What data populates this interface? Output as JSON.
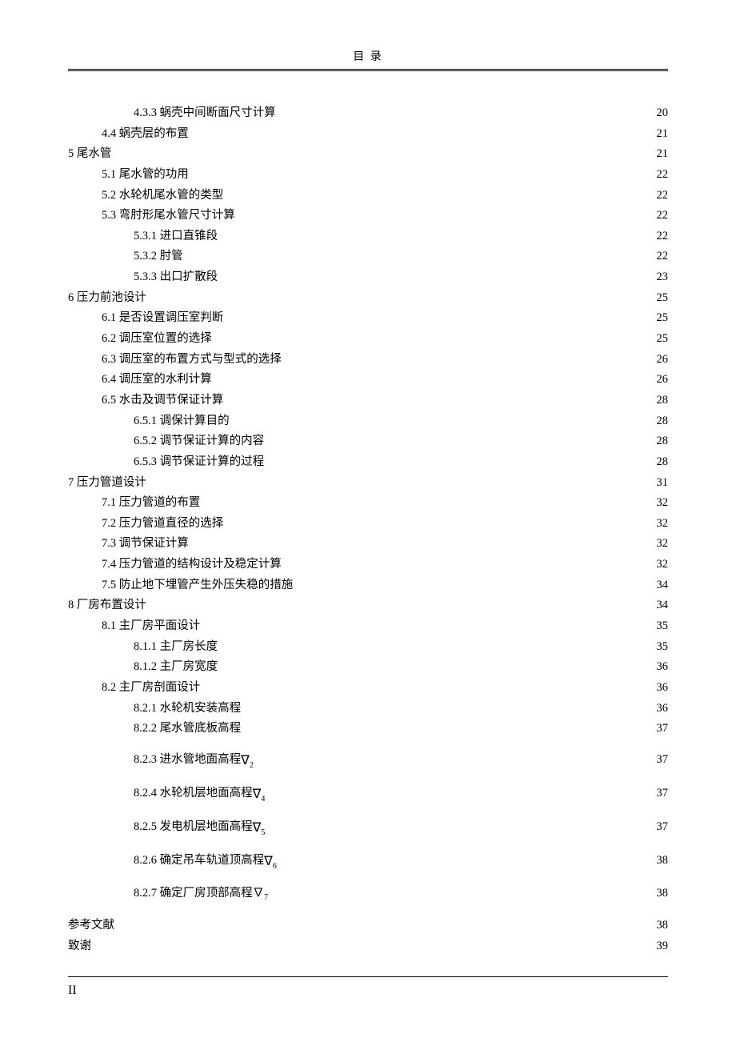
{
  "header": {
    "title": "目 录"
  },
  "footer": {
    "page_number": "II"
  },
  "toc": {
    "entries": [
      {
        "indent": 2,
        "label": "4.3.3 蜗壳中间断面尺寸计算",
        "page": "20"
      },
      {
        "indent": 1,
        "label": "4.4 蜗壳层的布置",
        "page": "21"
      },
      {
        "indent": 0,
        "label": "5 尾水管",
        "page": "21"
      },
      {
        "indent": 1,
        "label": "5.1 尾水管的功用",
        "page": "22"
      },
      {
        "indent": 1,
        "label": "5.2 水轮机尾水管的类型",
        "page": "22"
      },
      {
        "indent": 1,
        "label": "5.3 弯肘形尾水管尺寸计算",
        "page": "22"
      },
      {
        "indent": 2,
        "label": "5.3.1 进口直锥段",
        "page": "22"
      },
      {
        "indent": 2,
        "label": "5.3.2 肘管",
        "page": "22"
      },
      {
        "indent": 2,
        "label": "5.3.3 出口扩散段",
        "page": "23"
      },
      {
        "indent": 0,
        "label": "6 压力前池设计",
        "page": "25"
      },
      {
        "indent": 1,
        "label": "6.1 是否设置调压室判断",
        "page": "25"
      },
      {
        "indent": 1,
        "label": "6.2 调压室位置的选择",
        "page": "25"
      },
      {
        "indent": 1,
        "label": "6.3 调压室的布置方式与型式的选择",
        "page": "26"
      },
      {
        "indent": 1,
        "label": "6.4 调压室的水利计算",
        "page": "26"
      },
      {
        "indent": 1,
        "label": "6.5 水击及调节保证计算",
        "page": "28"
      },
      {
        "indent": 2,
        "label": "6.5.1 调保计算目的",
        "page": "28"
      },
      {
        "indent": 2,
        "label": "6.5.2 调节保证计算的内容",
        "page": "28"
      },
      {
        "indent": 2,
        "label": "6.5.3 调节保证计算的过程",
        "page": "28"
      },
      {
        "indent": 0,
        "label": "7 压力管道设计",
        "page": "31"
      },
      {
        "indent": 1,
        "label": "7.1 压力管道的布置",
        "page": "32"
      },
      {
        "indent": 1,
        "label": "7.2 压力管道直径的选择",
        "page": "32"
      },
      {
        "indent": 1,
        "label": "7.3 调节保证计算",
        "page": "32"
      },
      {
        "indent": 1,
        "label": "7.4 压力管道的结构设计及稳定计算",
        "page": "32"
      },
      {
        "indent": 1,
        "label": "7.5 防止地下埋管产生外压失稳的措施",
        "page": "34"
      },
      {
        "indent": 0,
        "label": "8 厂房布置设计",
        "page": "34"
      },
      {
        "indent": 1,
        "label": "8.1 主厂房平面设计",
        "page": "35"
      },
      {
        "indent": 2,
        "label": "8.1.1 主厂房长度",
        "page": "35"
      },
      {
        "indent": 2,
        "label": "8.1.2 主厂房宽度",
        "page": "36"
      },
      {
        "indent": 1,
        "label": "8.2 主厂房剖面设计",
        "page": "36"
      },
      {
        "indent": 2,
        "label": "8.2.1 水轮机安装高程",
        "page": "36"
      },
      {
        "indent": 2,
        "label": "8.2.2 尾水管底板高程",
        "page": "37"
      },
      {
        "indent": 2,
        "label": "8.2.3 进水管地面高程",
        "nabla_sub": "2",
        "page": "37",
        "spaced": true
      },
      {
        "indent": 2,
        "label": "8.2.4 水轮机层地面高程",
        "nabla_sub": "4",
        "page": "37",
        "spaced": true
      },
      {
        "indent": 2,
        "label": "8.2.5 发电机层地面高程",
        "nabla_sub": "5",
        "page": "37",
        "spaced": true
      },
      {
        "indent": 2,
        "label": "8.2.6 确定吊车轨道顶高程",
        "nabla_sub": "6",
        "page": "38",
        "spaced": true
      },
      {
        "indent": 2,
        "label": "8.2.7 确定厂房顶部高程∇",
        "plain_sub": "7",
        "page": "38",
        "spaced": true
      },
      {
        "indent": 0,
        "label": "参考文献",
        "page": "38"
      },
      {
        "indent": 0,
        "label": "致谢",
        "page": "39"
      }
    ]
  }
}
